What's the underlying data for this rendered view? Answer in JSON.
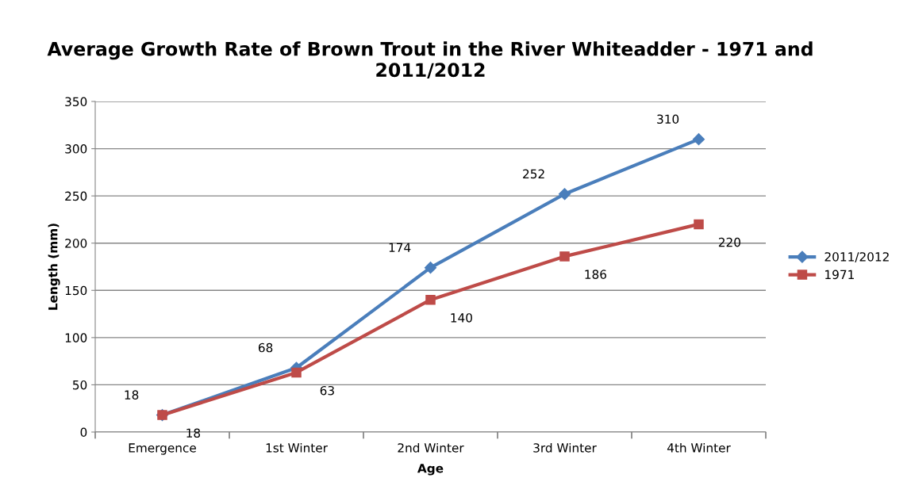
{
  "chart_data": {
    "type": "line",
    "title": "Average Growth Rate of Brown Trout in the River Whiteadder - 1971 and 2011/2012",
    "xlabel": "Age",
    "ylabel": "Length (mm)",
    "categories": [
      "Emergence",
      "1st Winter",
      "2nd Winter",
      "3rd Winter",
      "4th Winter"
    ],
    "series": [
      {
        "name": "2011/2012",
        "color": "#4a7ebb",
        "marker": "diamond",
        "values": [
          18,
          68,
          174,
          252,
          310
        ]
      },
      {
        "name": "1971",
        "color": "#be4b48",
        "marker": "square",
        "values": [
          18,
          63,
          140,
          186,
          220
        ]
      }
    ],
    "ylim": [
      0,
      350
    ],
    "yticks": [
      0,
      50,
      100,
      150,
      200,
      250,
      300,
      350
    ],
    "grid": "y",
    "legend": "right",
    "data_labels": true,
    "line_style": "solid"
  }
}
